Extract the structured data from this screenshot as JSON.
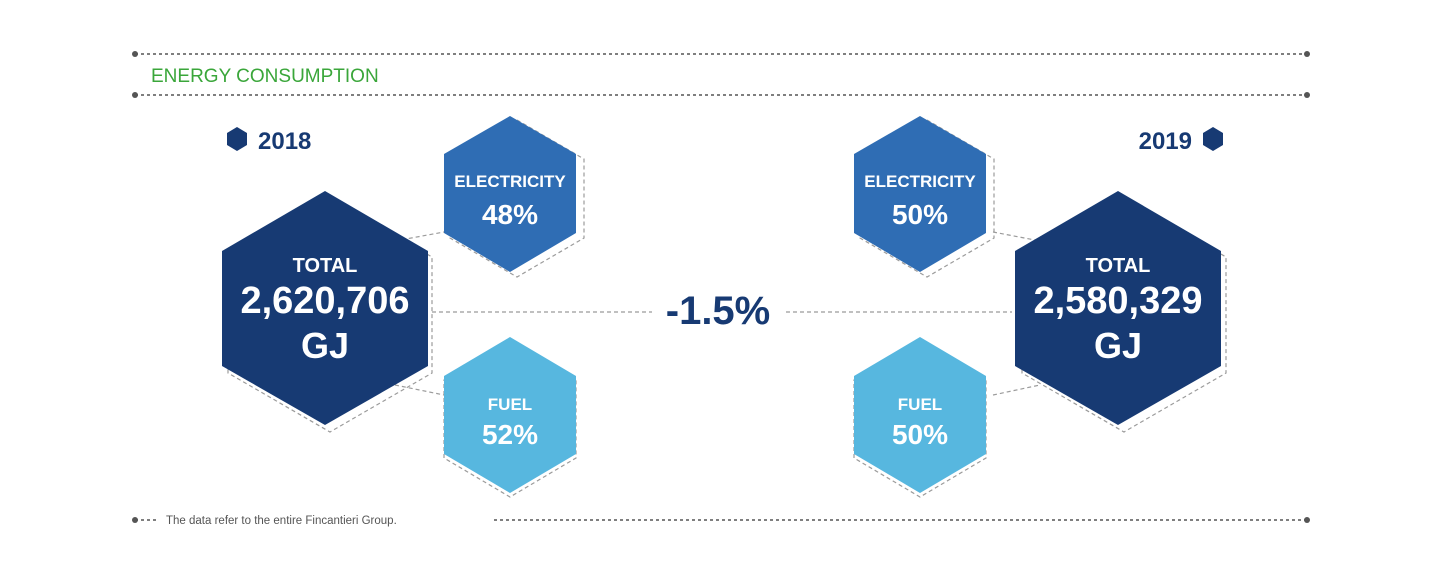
{
  "title": "ENERGY CONSUMPTION",
  "footnote": "The data refer to the entire Fincantieri Group.",
  "change": "-1.5%",
  "colors": {
    "title_green": "#3aa63a",
    "dark_navy": "#173a73",
    "mid_blue": "#2f6db4",
    "light_blue": "#57b7df",
    "dashed_gray": "#9b9b9b",
    "dot_gray": "#555555"
  },
  "year2018": {
    "year": "2018",
    "total_label": "TOTAL",
    "total_value": "2,620,706",
    "total_unit": "GJ",
    "electricity_label": "ELECTRICITY",
    "electricity_value": "48%",
    "fuel_label": "FUEL",
    "fuel_value": "52%"
  },
  "year2019": {
    "year": "2019",
    "total_label": "TOTAL",
    "total_value": "2,580,329",
    "total_unit": "GJ",
    "electricity_label": "ELECTRICITY",
    "electricity_value": "50%",
    "fuel_label": "FUEL",
    "fuel_value": "50%"
  }
}
